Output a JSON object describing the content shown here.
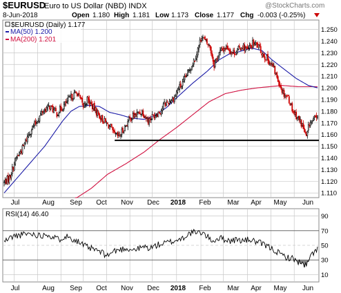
{
  "header": {
    "symbol": "$EURUSD",
    "name": "Euro to US Dollar (NBD)  INDX",
    "watermark": "@StockCharts.com",
    "date": "8-Jun-2018",
    "open_label": "Open",
    "open": "1.180",
    "high_label": "High",
    "high": "1.181",
    "low_label": "Low",
    "low": "1.173",
    "close_label": "Close",
    "close": "1.177",
    "chg_label": "Chg",
    "chg": "-0.003 (-0.25%)"
  },
  "legend": {
    "main": "$EURUSD (Daily) 1.177",
    "ma50": "MA(50) 1.200",
    "ma200": "MA(200) 1.201",
    "rsi": "RSI(14) 46.40"
  },
  "colors": {
    "up": "#000000",
    "down": "#cc0000",
    "ma50": "#1a1aa6",
    "ma200": "#d01040",
    "support": "#000000",
    "grid": "#c8c8c8",
    "rsi_line": "#000000",
    "rsi_fill": "#888888"
  },
  "chart_data": [
    {
      "type": "candlestick",
      "title": "$EURUSD (Daily) 1.177",
      "x_tick_labels": [
        "Jul",
        "Aug",
        "Sep",
        "Oct",
        "Nov",
        "Dec",
        "2018",
        "Feb",
        "Mar",
        "Apr",
        "May",
        "Jun"
      ],
      "y_tick_labels": [
        "1.110",
        "1.120",
        "1.130",
        "1.140",
        "1.150",
        "1.160",
        "1.170",
        "1.180",
        "1.190",
        "1.200",
        "1.210",
        "1.220",
        "1.230",
        "1.240",
        "1.250"
      ],
      "ylim": [
        1.106,
        1.258
      ],
      "grid": true,
      "price_keypoints": [
        [
          0,
          1.119
        ],
        [
          5,
          1.123
        ],
        [
          12,
          1.14
        ],
        [
          18,
          1.148
        ],
        [
          25,
          1.162
        ],
        [
          32,
          1.171
        ],
        [
          38,
          1.18
        ],
        [
          45,
          1.184
        ],
        [
          52,
          1.178
        ],
        [
          60,
          1.186
        ],
        [
          66,
          1.192
        ],
        [
          72,
          1.196
        ],
        [
          78,
          1.184
        ],
        [
          82,
          1.19
        ],
        [
          88,
          1.183
        ],
        [
          94,
          1.176
        ],
        [
          100,
          1.17
        ],
        [
          105,
          1.166
        ],
        [
          108,
          1.16
        ],
        [
          113,
          1.158
        ],
        [
          118,
          1.165
        ],
        [
          124,
          1.174
        ],
        [
          130,
          1.177
        ],
        [
          136,
          1.18
        ],
        [
          142,
          1.172
        ],
        [
          148,
          1.177
        ],
        [
          154,
          1.18
        ],
        [
          158,
          1.186
        ],
        [
          162,
          1.188
        ],
        [
          168,
          1.192
        ],
        [
          172,
          1.2
        ],
        [
          176,
          1.203
        ],
        [
          180,
          1.211
        ],
        [
          184,
          1.218
        ],
        [
          188,
          1.225
        ],
        [
          191,
          1.233
        ],
        [
          195,
          1.245
        ],
        [
          198,
          1.24
        ],
        [
          203,
          1.235
        ],
        [
          207,
          1.22
        ],
        [
          211,
          1.228
        ],
        [
          215,
          1.233
        ],
        [
          220,
          1.235
        ],
        [
          225,
          1.23
        ],
        [
          230,
          1.232
        ],
        [
          235,
          1.236
        ],
        [
          240,
          1.232
        ],
        [
          245,
          1.238
        ],
        [
          250,
          1.236
        ],
        [
          255,
          1.229
        ],
        [
          260,
          1.224
        ],
        [
          265,
          1.218
        ],
        [
          270,
          1.207
        ],
        [
          275,
          1.196
        ],
        [
          280,
          1.192
        ],
        [
          285,
          1.18
        ],
        [
          290,
          1.174
        ],
        [
          294,
          1.168
        ],
        [
          298,
          1.157
        ],
        [
          301,
          1.17
        ],
        [
          305,
          1.172
        ],
        [
          309,
          1.177
        ]
      ],
      "series": [
        {
          "name": "MA(50) 1.200",
          "values_keypoints": [
            [
              0,
              1.11
            ],
            [
              18,
              1.128
            ],
            [
              40,
              1.15
            ],
            [
              58,
              1.172
            ],
            [
              66,
              1.18
            ],
            [
              74,
              1.184
            ],
            [
              84,
              1.185
            ],
            [
              94,
              1.184
            ],
            [
              104,
              1.179
            ],
            [
              114,
              1.177
            ],
            [
              126,
              1.174
            ],
            [
              138,
              1.173
            ],
            [
              148,
              1.176
            ],
            [
              160,
              1.183
            ],
            [
              172,
              1.193
            ],
            [
              186,
              1.204
            ],
            [
              200,
              1.214
            ],
            [
              212,
              1.224
            ],
            [
              222,
              1.229
            ],
            [
              232,
              1.231
            ],
            [
              244,
              1.234
            ],
            [
              254,
              1.232
            ],
            [
              264,
              1.224
            ],
            [
              276,
              1.216
            ],
            [
              288,
              1.208
            ],
            [
              300,
              1.202
            ],
            [
              309,
              1.2
            ]
          ]
        },
        {
          "name": "MA(200) 1.201",
          "values_keypoints": [
            [
              70,
              1.105
            ],
            [
              86,
              1.114
            ],
            [
              102,
              1.126
            ],
            [
              120,
              1.135
            ],
            [
              138,
              1.145
            ],
            [
              154,
              1.156
            ],
            [
              170,
              1.166
            ],
            [
              186,
              1.177
            ],
            [
              202,
              1.188
            ],
            [
              218,
              1.195
            ],
            [
              234,
              1.198
            ],
            [
              250,
              1.2
            ],
            [
              262,
              1.201
            ],
            [
              274,
              1.202
            ],
            [
              290,
              1.201
            ],
            [
              309,
              1.201
            ]
          ]
        }
      ],
      "support_level": 1.155
    },
    {
      "type": "line",
      "title": "RSI(14) 46.40",
      "y_tick_labels": [
        "10",
        "30",
        "50",
        "70",
        "90"
      ],
      "ylim": [
        0,
        100
      ],
      "grid": true,
      "overbought": 70,
      "oversold": 30,
      "rsi_keypoints": [
        [
          0,
          55
        ],
        [
          8,
          62
        ],
        [
          16,
          64
        ],
        [
          24,
          66
        ],
        [
          30,
          65
        ],
        [
          36,
          63
        ],
        [
          42,
          66
        ],
        [
          48,
          61
        ],
        [
          54,
          58
        ],
        [
          60,
          63
        ],
        [
          66,
          60
        ],
        [
          72,
          56
        ],
        [
          78,
          50
        ],
        [
          84,
          46
        ],
        [
          90,
          44
        ],
        [
          96,
          40
        ],
        [
          102,
          36
        ],
        [
          108,
          42
        ],
        [
          114,
          44
        ],
        [
          120,
          46
        ],
        [
          126,
          44
        ],
        [
          132,
          45
        ],
        [
          138,
          48
        ],
        [
          144,
          46
        ],
        [
          150,
          50
        ],
        [
          156,
          52
        ],
        [
          162,
          54
        ],
        [
          168,
          56
        ],
        [
          172,
          58
        ],
        [
          176,
          60
        ],
        [
          180,
          64
        ],
        [
          186,
          68
        ],
        [
          190,
          66
        ],
        [
          195,
          68
        ],
        [
          200,
          62
        ],
        [
          206,
          56
        ],
        [
          212,
          60
        ],
        [
          218,
          58
        ],
        [
          224,
          56
        ],
        [
          230,
          58
        ],
        [
          236,
          56
        ],
        [
          242,
          58
        ],
        [
          248,
          55
        ],
        [
          254,
          52
        ],
        [
          260,
          48
        ],
        [
          266,
          44
        ],
        [
          272,
          38
        ],
        [
          278,
          34
        ],
        [
          284,
          32
        ],
        [
          290,
          28
        ],
        [
          294,
          24
        ],
        [
          298,
          22
        ],
        [
          302,
          34
        ],
        [
          306,
          42
        ],
        [
          309,
          46
        ]
      ]
    }
  ]
}
